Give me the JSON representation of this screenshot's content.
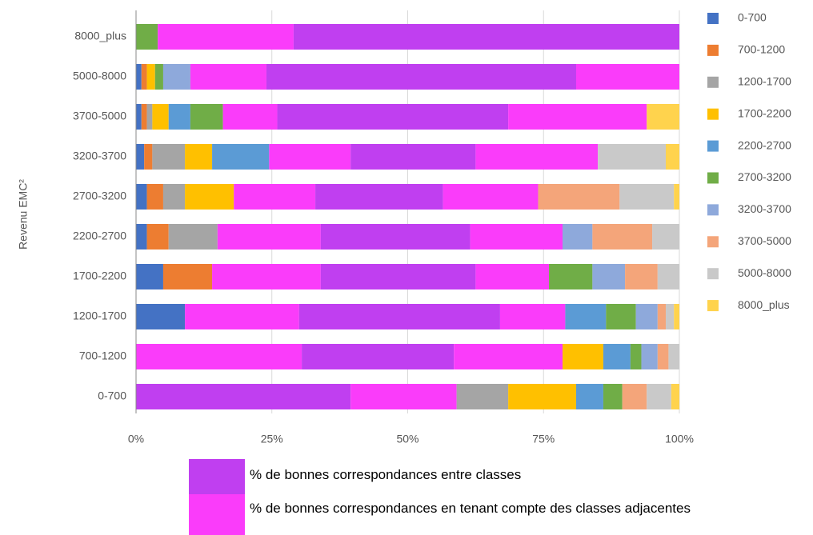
{
  "chart_data": {
    "type": "stacked_bar_horizontal",
    "y_label": "Revenu EMC²",
    "categories": [
      "0-700",
      "700-1200",
      "1200-1700",
      "1700-2200",
      "2200-2700",
      "2700-3200",
      "3200-3700",
      "3700-5000",
      "5000-8000",
      "8000_plus"
    ],
    "series": [
      {
        "name": "0-700",
        "color": "#4472c4",
        "values": [
          39.5,
          30.5,
          9,
          5,
          2,
          2,
          1.5,
          1,
          1,
          0
        ]
      },
      {
        "name": "700-1200",
        "color": "#ed7d31",
        "values": [
          19.5,
          28,
          21,
          9,
          4,
          3,
          1.5,
          1,
          1,
          0
        ]
      },
      {
        "name": "1200-1700",
        "color": "#a5a5a5",
        "values": [
          9.5,
          20,
          37,
          20,
          9,
          4,
          6,
          1,
          0,
          0
        ]
      },
      {
        "name": "1700-2200",
        "color": "#ffc000",
        "values": [
          12.5,
          7.5,
          12,
          28.5,
          19,
          9,
          5,
          3,
          1.5,
          0
        ]
      },
      {
        "name": "2200-2700",
        "color": "#5b9bd5",
        "values": [
          5,
          5,
          7.5,
          13.5,
          27.5,
          15,
          10.5,
          4,
          0,
          0
        ]
      },
      {
        "name": "2700-3200",
        "color": "#70ad47",
        "values": [
          3.5,
          2,
          5.5,
          8,
          17,
          23.5,
          15,
          6,
          1.5,
          4
        ]
      },
      {
        "name": "3200-3700",
        "color": "#8ea9db",
        "values": [
          0,
          3,
          4,
          6,
          5.5,
          17.5,
          23,
          10,
          5,
          0
        ]
      },
      {
        "name": "3700-5000",
        "color": "#f4a57a",
        "values": [
          4.5,
          2,
          1.5,
          6,
          11,
          15,
          22.5,
          42.5,
          14,
          0
        ]
      },
      {
        "name": "5000-8000",
        "color": "#c9c9c9",
        "values": [
          4.5,
          2,
          1.5,
          4,
          5,
          10,
          12.5,
          25.5,
          57,
          25
        ]
      },
      {
        "name": "8000_plus",
        "color": "#ffd34d",
        "values": [
          1.5,
          0,
          1,
          0,
          0,
          1,
          2.5,
          6,
          19,
          71
        ]
      }
    ],
    "highlight": {
      "exact": {
        "label": "% de bonnes correspondances entre classes",
        "color": "#c03ff0"
      },
      "adjacent": {
        "label": "% de bonnes correspondances en tenant compte des classes adjacentes",
        "color": "#fa3cfa"
      }
    },
    "xlim": [
      0,
      100
    ],
    "xticks": [
      {
        "value": 0,
        "label": "0%"
      },
      {
        "value": 25,
        "label": "25%"
      },
      {
        "value": 50,
        "label": "50%"
      },
      {
        "value": 75,
        "label": "75%"
      },
      {
        "value": 100,
        "label": "100%"
      }
    ],
    "grid": true,
    "legend": "right"
  }
}
